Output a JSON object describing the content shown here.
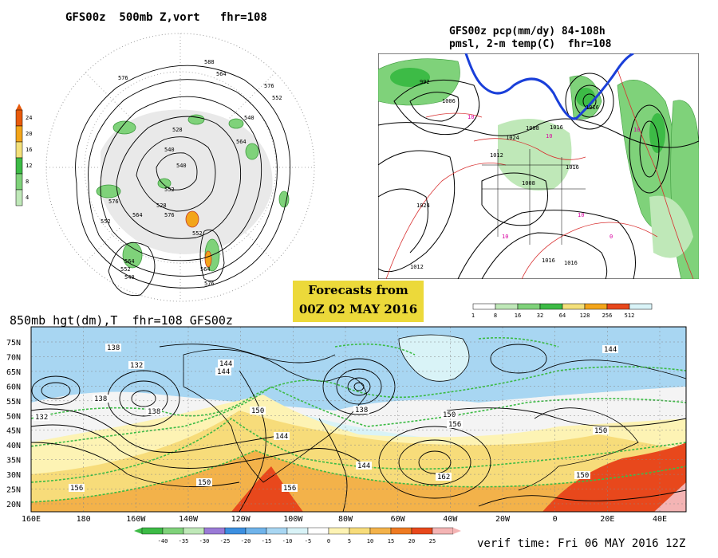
{
  "polar_panel": {
    "title": "GFS00z  500mb Z,vort   fhr=108",
    "colorbar_ticks": [
      "24",
      "20",
      "16",
      "12",
      "8",
      "4"
    ],
    "colorbar_colors": [
      "#e85a0c",
      "#f3a51a",
      "#f3e07a",
      "#3dbb46",
      "#7fd27a",
      "#bfe8b8"
    ],
    "contour_labels": [
      "576",
      "564",
      "552",
      "540",
      "528",
      "540",
      "564",
      "576",
      "552",
      "564",
      "576",
      "552",
      "540",
      "528",
      "552",
      "564",
      "576",
      "564",
      "552",
      "540",
      "576",
      "588"
    ]
  },
  "precip_panel": {
    "title_line1": "GFS00z pcp(mm/dy) 84-108h",
    "title_line2": "pmsl, 2-m temp(C)  fhr=108",
    "isobar_labels": [
      "992",
      "1006",
      "1024",
      "1024",
      "1012",
      "1008",
      "1016",
      "1016",
      "1008",
      "1016",
      "1016",
      "1016",
      "1012"
    ],
    "temp_labels": [
      "10",
      "10",
      "10",
      "10",
      "0",
      "10"
    ],
    "colorbar_ticks": [
      "1",
      "8",
      "16",
      "32",
      "64",
      "128",
      "256",
      "512"
    ],
    "colorbar_colors": [
      "#ffffff",
      "#bfe8b8",
      "#7fd27a",
      "#3dbb46",
      "#f3e07a",
      "#f3a51a",
      "#e8481c",
      "#d9f3f7"
    ]
  },
  "forecast_box": {
    "line1": "Forecasts from",
    "line2": "00Z 02 MAY 2016"
  },
  "main_panel": {
    "title": "850mb hgt(dm),T  fhr=108 GFS00z",
    "lat_labels": [
      "75N",
      "70N",
      "65N",
      "60N",
      "55N",
      "50N",
      "45N",
      "40N",
      "35N",
      "30N",
      "25N",
      "20N"
    ],
    "lon_labels": [
      "160E",
      "180",
      "160W",
      "140W",
      "120W",
      "100W",
      "80W",
      "60W",
      "40W",
      "20W",
      "0",
      "20E",
      "40E"
    ],
    "height_labels": [
      "138",
      "132",
      "144",
      "144",
      "138",
      "132",
      "138",
      "150",
      "144",
      "138",
      "150",
      "156",
      "144",
      "156",
      "150",
      "156",
      "162",
      "150",
      "150",
      "144"
    ],
    "colorbar_ticks": [
      "-40",
      "-35",
      "-30",
      "-25",
      "-20",
      "-15",
      "-10",
      "-5",
      "0",
      "5",
      "10",
      "15",
      "20",
      "25"
    ],
    "colorbar_colors": [
      "#3dbb46",
      "#7fd27a",
      "#bfe8b8",
      "#9a7ad6",
      "#3c8fe0",
      "#6fb3ea",
      "#a8d6f2",
      "#d9f3f7",
      "#ffffff",
      "#fdf3b4",
      "#f7dc7a",
      "#f3b24a",
      "#ee7a22",
      "#e8481c",
      "#f4b4b4"
    ]
  },
  "verif_time": "verif time: Fri 06 MAY 2016 12Z"
}
